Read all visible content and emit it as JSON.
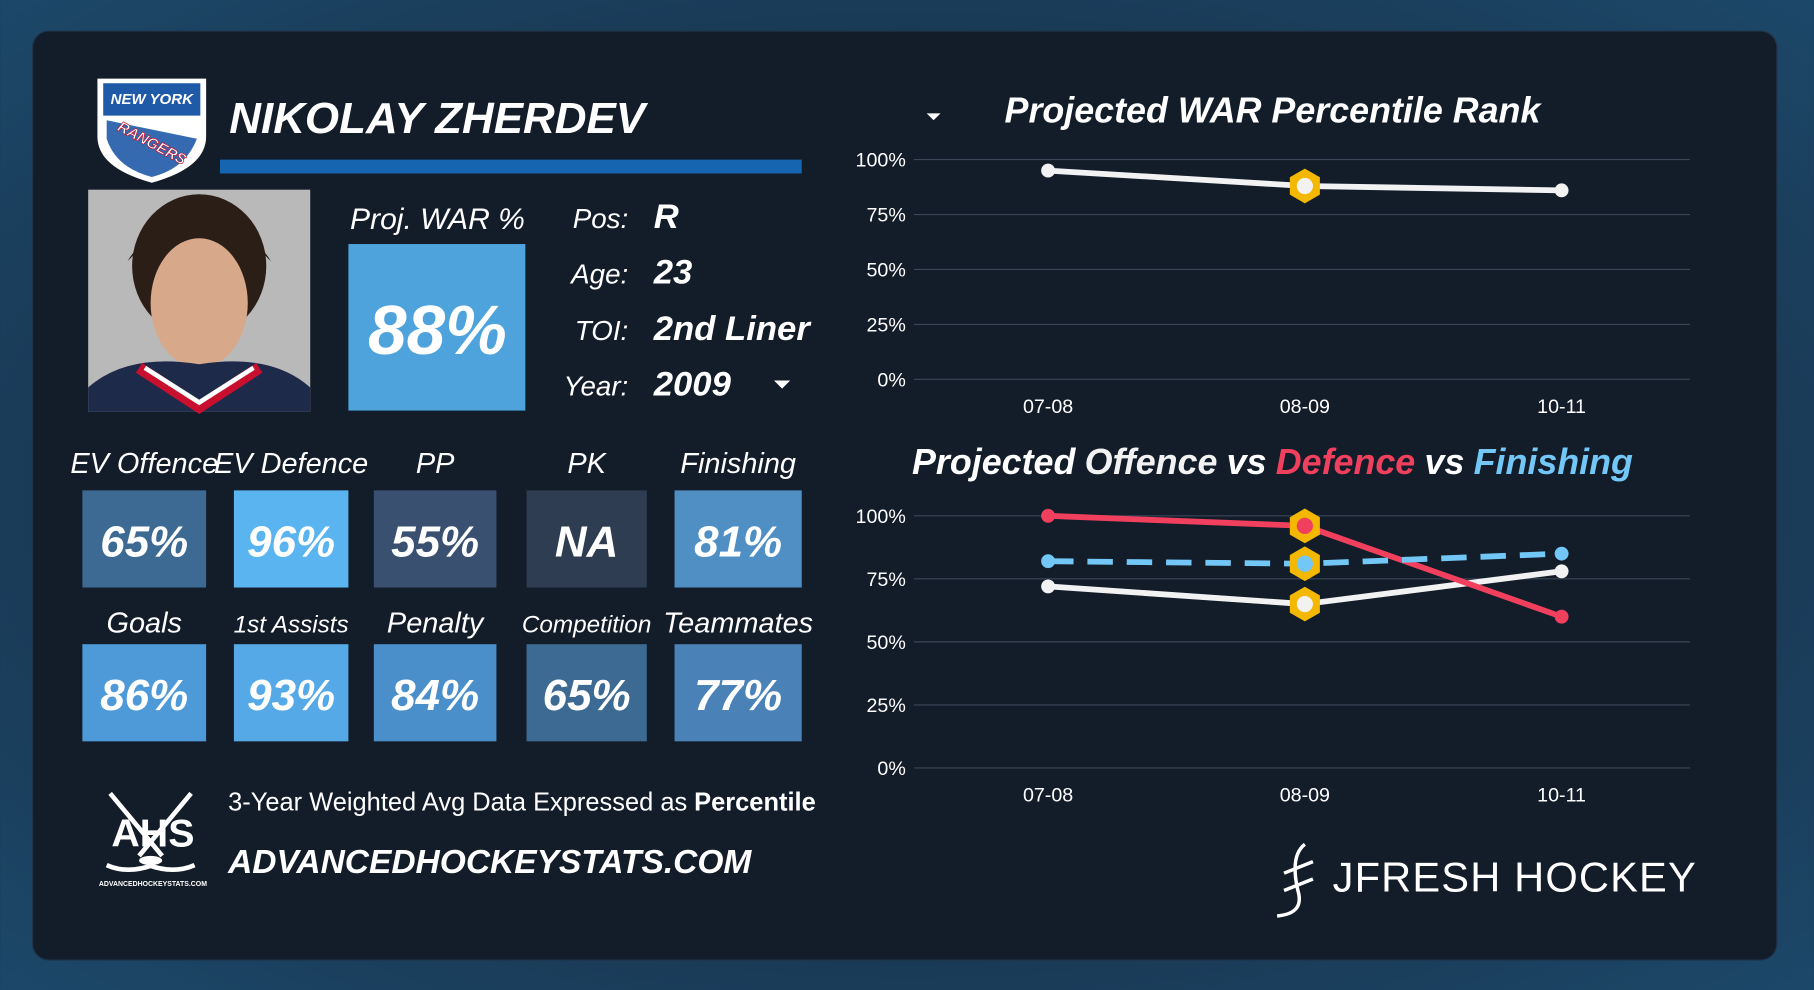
{
  "logo": {
    "line1": "NEW YORK",
    "line2": "RANGERS"
  },
  "player": {
    "name": "NIKOLAY ZHERDEV",
    "proj_war_label": "Proj. WAR %",
    "proj_war": "88%",
    "proj_war_color": "#4ea3dc",
    "info": [
      {
        "label": "Pos:",
        "value": "R"
      },
      {
        "label": "Age:",
        "value": "23"
      },
      {
        "label": "TOI:",
        "value": "2nd Liner"
      },
      {
        "label": "Year:",
        "value": "2009"
      }
    ]
  },
  "stats": [
    {
      "label": "EV Offence",
      "value": "65%",
      "color": "#3d6a93"
    },
    {
      "label": "EV Defence",
      "value": "96%",
      "color": "#5ab4ef"
    },
    {
      "label": "PP",
      "value": "55%",
      "color": "#3a5070"
    },
    {
      "label": "PK",
      "value": "NA",
      "color": "#2e3d52"
    },
    {
      "label": "Finishing",
      "value": "81%",
      "color": "#4f8fc4"
    },
    {
      "label": "Goals",
      "value": "86%",
      "color": "#4e9ad8"
    },
    {
      "label": "1st Assists",
      "value": "93%",
      "color": "#55a9e6"
    },
    {
      "label": "Penalty",
      "value": "84%",
      "color": "#4b8fca"
    },
    {
      "label": "Competition",
      "value": "65%",
      "color": "#3d6a93"
    },
    {
      "label": "Teammates",
      "value": "77%",
      "color": "#4a82b7"
    }
  ],
  "footer": {
    "note": "3-Year Weighted Avg Data Expressed as",
    "note_bold": "Percentile",
    "site": "ADVANCEDHOCKEYSTATS.COM",
    "ahs": "AHS",
    "ahs_small": "ADVANCEDHOCKEYSTATS.COM",
    "brand": "JFRESH HOCKEY"
  },
  "chart_data": [
    {
      "type": "line",
      "title": "Projected WAR Percentile Rank",
      "categories": [
        "07-08",
        "08-09",
        "10-11"
      ],
      "values": [
        95,
        88,
        86
      ],
      "color": "#f2f2f2",
      "highlight_index": 1,
      "ylim": [
        0,
        100
      ],
      "yticks": [
        {
          "value": 0,
          "label": "0%"
        },
        {
          "value": 25,
          "label": "25%"
        },
        {
          "value": 50,
          "label": "50%"
        },
        {
          "value": 75,
          "label": "75%"
        },
        {
          "value": 100,
          "label": "100%"
        }
      ],
      "grid": true
    },
    {
      "type": "line",
      "title_prefix": "Projected",
      "title_connector": "vs",
      "categories": [
        "07-08",
        "08-09",
        "10-11"
      ],
      "series": [
        {
          "name": "Offence",
          "color": "#f2f2f2",
          "values": [
            72,
            65,
            78
          ]
        },
        {
          "name": "Defence",
          "color": "#f0405e",
          "values": [
            100,
            96,
            60
          ]
        },
        {
          "name": "Finishing",
          "color": "#72c7f7",
          "values": [
            82,
            81,
            85
          ],
          "dashed": true
        }
      ],
      "highlight_index": 1,
      "ylim": [
        0,
        100
      ],
      "yticks": [
        {
          "value": 0,
          "label": "0%"
        },
        {
          "value": 25,
          "label": "25%"
        },
        {
          "value": 50,
          "label": "50%"
        },
        {
          "value": 75,
          "label": "75%"
        },
        {
          "value": 100,
          "label": "100%"
        }
      ],
      "grid": true
    }
  ]
}
